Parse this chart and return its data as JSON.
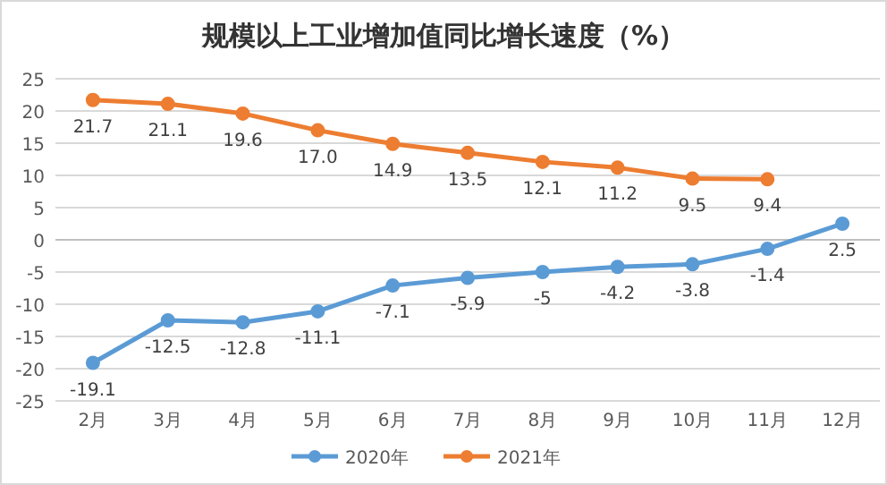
{
  "chart_data": {
    "type": "line",
    "title": "规模以上工业增加值同比增长速度（%）",
    "categories": [
      "2月",
      "3月",
      "4月",
      "5月",
      "6月",
      "7月",
      "8月",
      "9月",
      "10月",
      "11月",
      "12月"
    ],
    "series": [
      {
        "name": "2020年",
        "color": "#5b9bd5",
        "values": [
          -19.1,
          -12.5,
          -12.8,
          -11.1,
          -7.1,
          -5.9,
          -5,
          -4.2,
          -3.8,
          -1.4,
          2.5
        ],
        "value_labels": [
          "-19.1",
          "-12.5",
          "-12.8",
          "-11.1",
          "-7.1",
          "-5.9",
          "-5",
          "-4.2",
          "-3.8",
          "-1.4",
          "2.5"
        ]
      },
      {
        "name": "2021年",
        "color": "#ed7d31",
        "values": [
          21.7,
          21.1,
          19.6,
          17.0,
          14.9,
          13.5,
          12.1,
          11.2,
          9.5,
          9.4,
          null
        ],
        "value_labels": [
          "21.7",
          "21.1",
          "19.6",
          "17.0",
          "14.9",
          "13.5",
          "12.1",
          "11.2",
          "9.5",
          "9.4",
          null
        ]
      }
    ],
    "ylim": [
      -25,
      25
    ],
    "yticks": [
      -25,
      -20,
      -15,
      -10,
      -5,
      0,
      5,
      10,
      15,
      20,
      25
    ],
    "grid": "y",
    "legend": "bottom",
    "marker": "circle",
    "line_style": "solid"
  }
}
